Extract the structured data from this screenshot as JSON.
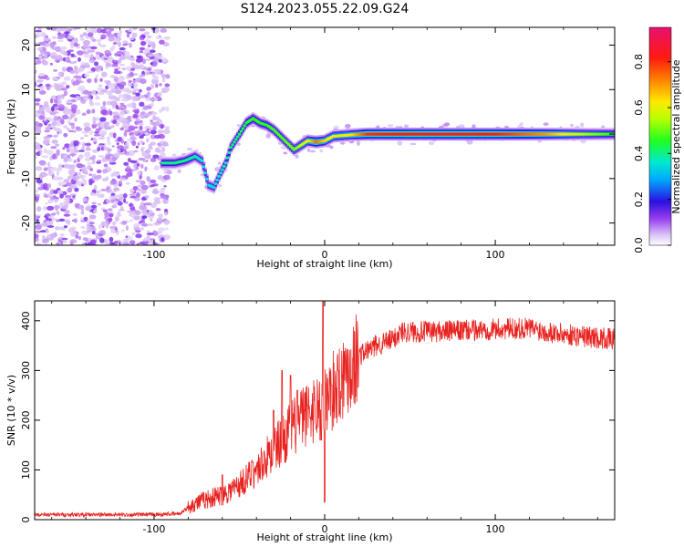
{
  "title": "S124.2023.055.22.09.G24",
  "chart_data": [
    {
      "type": "heatmap",
      "xlabel": "Height of straight line (km)",
      "ylabel": "Frequency (Hz)",
      "xlim": [
        -170,
        170
      ],
      "ylim": [
        -25,
        24
      ],
      "xticks": [
        -100,
        0,
        100
      ],
      "yticks": [
        -20,
        -10,
        0,
        10,
        20
      ],
      "colorbar": {
        "label": "Normalized spectral amplitude",
        "range": [
          0,
          0.95
        ],
        "ticks": [
          "0.0",
          "0.2",
          "0.4",
          "0.6",
          "0.8"
        ],
        "tick_values": [
          0,
          0.2,
          0.4,
          0.6,
          0.8
        ]
      },
      "noise_region_x": [
        -170,
        -92
      ],
      "ridge": [
        {
          "x": -95,
          "y": -6.5,
          "amp": 0.4
        },
        {
          "x": -88,
          "y": -6.5,
          "amp": 0.4
        },
        {
          "x": -82,
          "y": -6.0,
          "amp": 0.4
        },
        {
          "x": -76,
          "y": -5.0,
          "amp": 0.38
        },
        {
          "x": -72,
          "y": -6.0,
          "amp": 0.36
        },
        {
          "x": -68,
          "y": -11.5,
          "amp": 0.35
        },
        {
          "x": -65,
          "y": -12.0,
          "amp": 0.35
        },
        {
          "x": -62,
          "y": -9.5,
          "amp": 0.36
        },
        {
          "x": -58,
          "y": -6.5,
          "amp": 0.38
        },
        {
          "x": -55,
          "y": -3.0,
          "amp": 0.4
        },
        {
          "x": -50,
          "y": 0.0,
          "amp": 0.42
        },
        {
          "x": -46,
          "y": 2.5,
          "amp": 0.44
        },
        {
          "x": -42,
          "y": 3.5,
          "amp": 0.46
        },
        {
          "x": -38,
          "y": 2.5,
          "amp": 0.46
        },
        {
          "x": -34,
          "y": 2.0,
          "amp": 0.46
        },
        {
          "x": -30,
          "y": 1.0,
          "amp": 0.48
        },
        {
          "x": -26,
          "y": -0.5,
          "amp": 0.48
        },
        {
          "x": -22,
          "y": -2.0,
          "amp": 0.5
        },
        {
          "x": -18,
          "y": -3.5,
          "amp": 0.5
        },
        {
          "x": -14,
          "y": -2.5,
          "amp": 0.55
        },
        {
          "x": -10,
          "y": -1.5,
          "amp": 0.6
        },
        {
          "x": -5,
          "y": -1.8,
          "amp": 0.75
        },
        {
          "x": 0,
          "y": -1.5,
          "amp": 0.65
        },
        {
          "x": 5,
          "y": -0.5,
          "amp": 0.6
        },
        {
          "x": 15,
          "y": -0.2,
          "amp": 0.62
        },
        {
          "x": 25,
          "y": 0.0,
          "amp": 0.8
        },
        {
          "x": 60,
          "y": 0.0,
          "amp": 0.85
        },
        {
          "x": 100,
          "y": 0.0,
          "amp": 0.82
        },
        {
          "x": 130,
          "y": 0.0,
          "amp": 0.7
        },
        {
          "x": 150,
          "y": 0.0,
          "amp": 0.55
        },
        {
          "x": 170,
          "y": 0.0,
          "amp": 0.45
        }
      ]
    },
    {
      "type": "line",
      "xlabel": "Height of straight line (km)",
      "ylabel": "SNR (10 * v/v)",
      "xlim": [
        -170,
        170
      ],
      "ylim": [
        0,
        440
      ],
      "xticks": [
        -100,
        0,
        100
      ],
      "yticks": [
        0,
        100,
        200,
        300,
        400
      ],
      "series": [
        {
          "color": "#e8221f",
          "trend": [
            [
              -170,
              10
            ],
            [
              -100,
              10
            ],
            [
              -85,
              12
            ],
            [
              -78,
              30
            ],
            [
              -70,
              40
            ],
            [
              -60,
              50
            ],
            [
              -50,
              70
            ],
            [
              -40,
              100
            ],
            [
              -30,
              140
            ],
            [
              -20,
              180
            ],
            [
              -10,
              215
            ],
            [
              -5,
              225
            ],
            [
              0,
              235
            ],
            [
              10,
              285
            ],
            [
              20,
              330
            ],
            [
              30,
              350
            ],
            [
              40,
              362
            ],
            [
              45,
              378
            ],
            [
              60,
              378
            ],
            [
              80,
              380
            ],
            [
              100,
              383
            ],
            [
              120,
              385
            ],
            [
              140,
              373
            ],
            [
              160,
              366
            ],
            [
              170,
              362
            ]
          ],
          "spikes": [
            [
              -60,
              90
            ],
            [
              -42,
              115
            ],
            [
              -30,
              220
            ],
            [
              -25,
              300
            ],
            [
              -20,
              290
            ],
            [
              -16,
              260
            ],
            [
              -10,
              230
            ],
            [
              -2,
              160
            ],
            [
              -1,
              440
            ],
            [
              0,
              35
            ],
            [
              4,
              270
            ],
            [
              8,
              300
            ]
          ]
        }
      ]
    }
  ]
}
